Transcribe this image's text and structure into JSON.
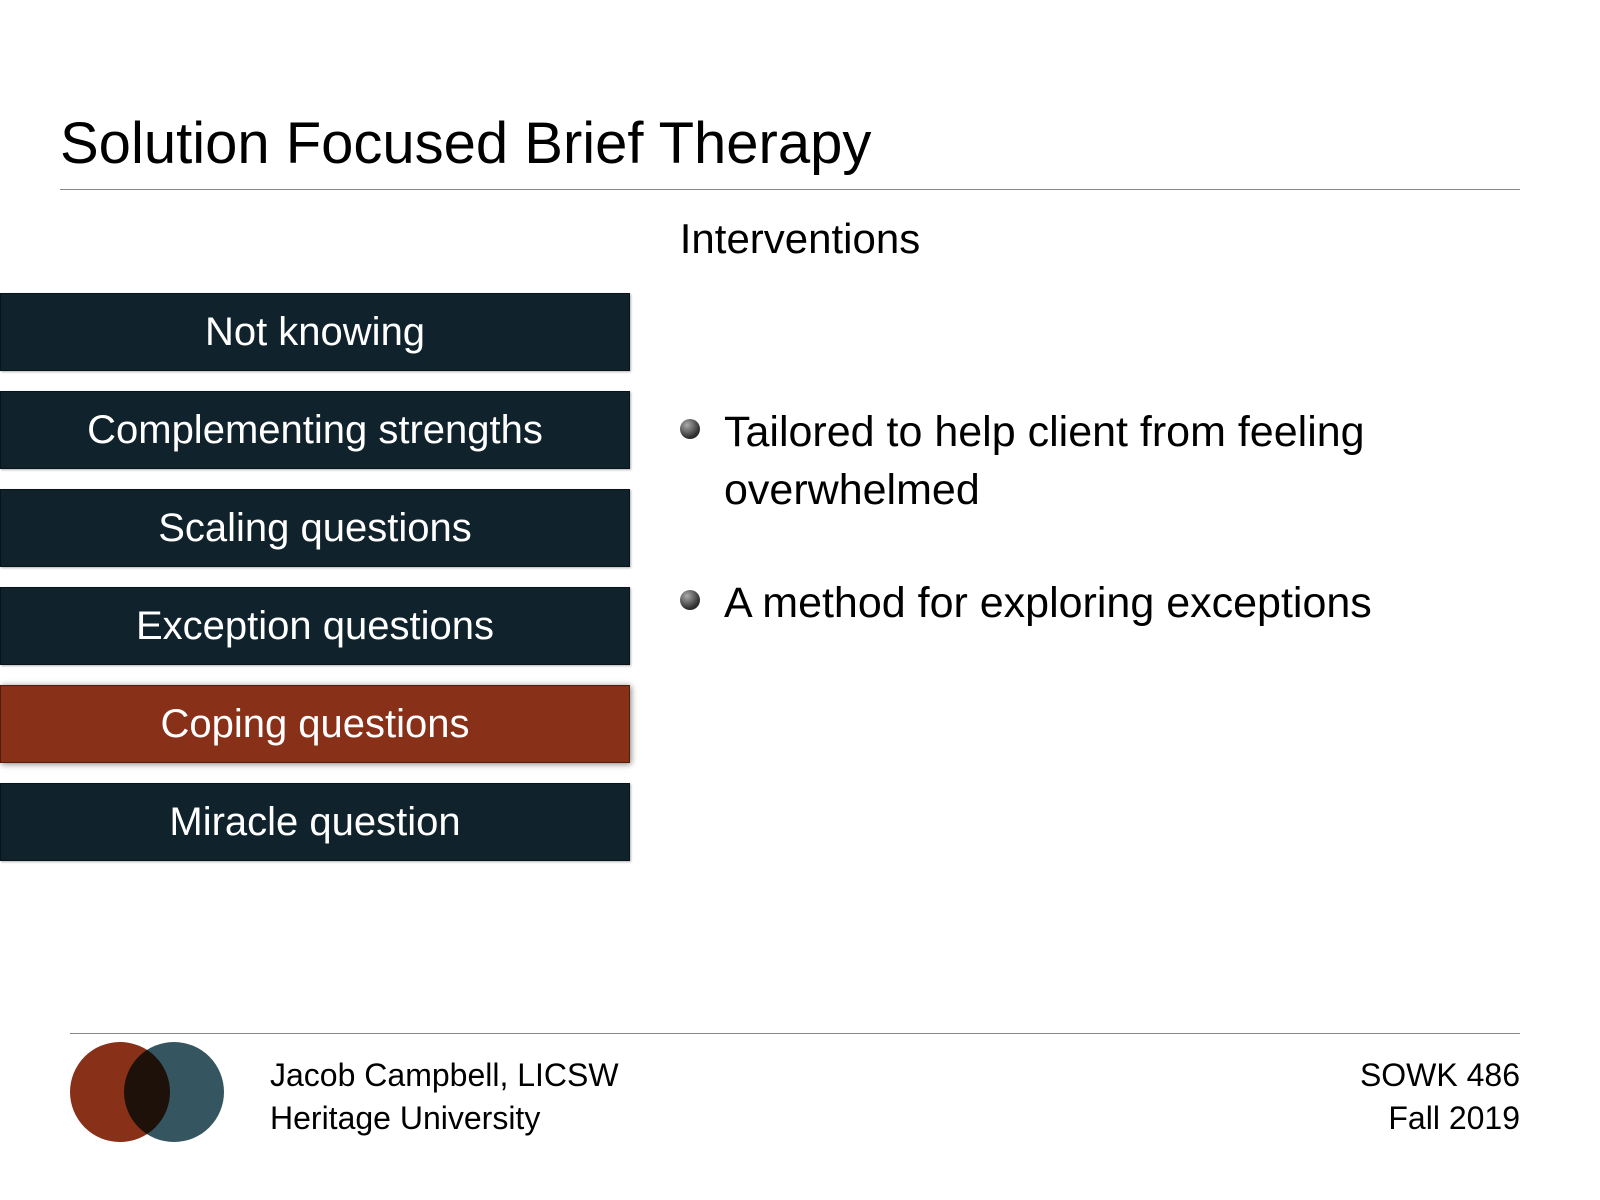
{
  "title": "Solution Focused Brief Therapy",
  "subtitle": "Interventions",
  "interventions": {
    "item_color": "#10222b",
    "highlight_color": "#883118",
    "text_color": "#ffffff",
    "items": [
      {
        "label": "Not knowing",
        "highlighted": false
      },
      {
        "label": "Complementing strengths",
        "highlighted": false
      },
      {
        "label": "Scaling questions",
        "highlighted": false
      },
      {
        "label": "Exception questions",
        "highlighted": false
      },
      {
        "label": "Coping questions",
        "highlighted": true
      },
      {
        "label": "Miracle question",
        "highlighted": false
      }
    ]
  },
  "bullets": [
    "Tailored to help client from feeling overwhelmed",
    "A method for exploring exceptions"
  ],
  "footer": {
    "author": "Jacob Campbell, LICSW",
    "institution": "Heritage University",
    "course": "SOWK 486",
    "term": "Fall 2019",
    "circle_a_color": "#883118",
    "circle_b_color": "#355660"
  },
  "style": {
    "background_color": "#ffffff",
    "title_fontsize": 58,
    "subtitle_fontsize": 42,
    "body_fontsize": 43,
    "footer_fontsize": 32,
    "rule_color": "#888888"
  }
}
